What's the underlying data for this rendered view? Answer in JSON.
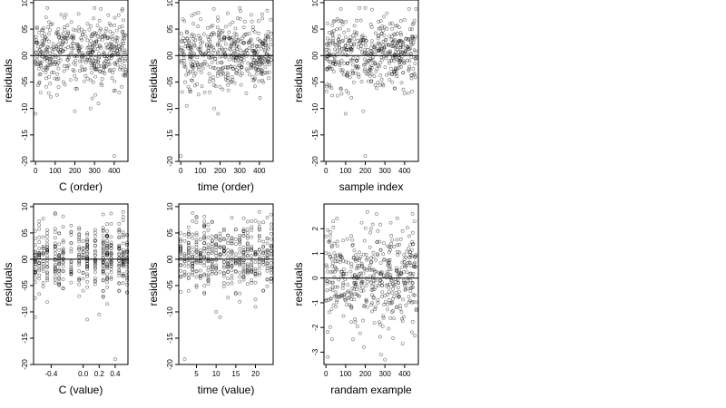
{
  "chart_data": [
    {
      "type": "scatter",
      "xlabel": "C (order)",
      "ylabel": "residuals",
      "xlim": [
        -10,
        470
      ],
      "ylim": [
        -2.0,
        1.05
      ],
      "xticks": [
        0,
        100,
        200,
        300,
        400
      ],
      "xtick_labels": [
        "0",
        "100",
        "200",
        "300",
        "400"
      ],
      "yticks": [
        -2.0,
        -1.5,
        -1.0,
        -0.5,
        0.0,
        0.5,
        1.0
      ],
      "ytick_labels": [
        "-20",
        "-15",
        "-10",
        "-05",
        "00",
        "05",
        "10"
      ],
      "reference_line_y": 0,
      "n_points": 460,
      "x_range": [
        0,
        460
      ],
      "y_range": [
        -1.9,
        0.9
      ],
      "notes_points": [
        [
          0,
          -1.1
        ],
        [
          200,
          -1.05
        ],
        [
          280,
          -1.0
        ],
        [
          400,
          -1.9
        ],
        [
          60,
          0.9
        ],
        [
          300,
          0.9
        ],
        [
          440,
          0.85
        ]
      ]
    },
    {
      "type": "scatter",
      "xlabel": "time (order)",
      "ylabel": "residuals",
      "xlim": [
        -10,
        470
      ],
      "ylim": [
        -2.0,
        1.05
      ],
      "xticks": [
        0,
        100,
        200,
        300,
        400
      ],
      "xtick_labels": [
        "0",
        "100",
        "200",
        "300",
        "400"
      ],
      "yticks": [
        -2.0,
        -1.5,
        -1.0,
        -0.5,
        0.0,
        0.5,
        1.0
      ],
      "ytick_labels": [
        "-20",
        "-15",
        "-10",
        "-05",
        "00",
        "05",
        "10"
      ],
      "reference_line_y": 0,
      "n_points": 460,
      "x_range": [
        0,
        460
      ],
      "y_range": [
        -1.9,
        0.9
      ],
      "notes_points": [
        [
          0,
          -1.9
        ],
        [
          30,
          -0.95
        ],
        [
          170,
          -1.0
        ],
        [
          190,
          -1.1
        ],
        [
          300,
          0.9
        ],
        [
          440,
          0.85
        ]
      ]
    },
    {
      "type": "scatter",
      "xlabel": "sample index",
      "ylabel": "residuals",
      "xlim": [
        -10,
        470
      ],
      "ylim": [
        -2.0,
        1.05
      ],
      "xticks": [
        0,
        100,
        200,
        300,
        400
      ],
      "xtick_labels": [
        "0",
        "100",
        "200",
        "300",
        "400"
      ],
      "yticks": [
        -2.0,
        -1.5,
        -1.0,
        -0.5,
        0.0,
        0.5,
        1.0
      ],
      "ytick_labels": [
        "-20",
        "-15",
        "-10",
        "-05",
        "00",
        "05",
        "10"
      ],
      "reference_line_y": 0,
      "n_points": 460,
      "x_range": [
        0,
        460
      ],
      "y_range": [
        -1.9,
        0.9
      ],
      "notes_points": [
        [
          200,
          -1.9
        ],
        [
          100,
          -1.1
        ],
        [
          190,
          -1.05
        ],
        [
          170,
          0.9
        ],
        [
          200,
          0.9
        ],
        [
          310,
          0.8
        ]
      ]
    },
    {
      "type": "scatter",
      "xlabel": "C (value)",
      "ylabel": "residuals",
      "xlim": [
        -0.62,
        0.56
      ],
      "ylim": [
        -2.0,
        1.05
      ],
      "xticks": [
        -0.4,
        0.0,
        0.2,
        0.4
      ],
      "xtick_labels": [
        "-0.4",
        "0.0",
        "0.2",
        "0.4"
      ],
      "yticks": [
        -2.0,
        -1.5,
        -1.0,
        -0.5,
        0.0,
        0.5,
        1.0
      ],
      "ytick_labels": [
        "-20",
        "-15",
        "-10",
        "-05",
        "00",
        "05",
        "10"
      ],
      "reference_line_y": 0,
      "n_points": 460,
      "x_columns": [
        -0.6,
        -0.55,
        -0.5,
        -0.45,
        -0.35,
        -0.3,
        -0.25,
        -0.15,
        -0.05,
        0.0,
        0.05,
        0.15,
        0.25,
        0.3,
        0.35,
        0.45,
        0.5,
        0.55
      ],
      "y_range": [
        -1.9,
        0.9
      ],
      "notes_points": [
        [
          -0.6,
          -1.1
        ],
        [
          0.2,
          -1.05
        ],
        [
          0.4,
          -1.9
        ],
        [
          0.5,
          0.9
        ]
      ]
    },
    {
      "type": "scatter",
      "xlabel": "time (value)",
      "ylabel": "residuals",
      "xlim": [
        0.5,
        24.5
      ],
      "ylim": [
        -2.0,
        1.05
      ],
      "xticks": [
        5,
        10,
        15,
        20
      ],
      "xtick_labels": [
        "5",
        "10",
        "15",
        "20"
      ],
      "yticks": [
        -2.0,
        -1.5,
        -1.0,
        -0.5,
        0.0,
        0.5,
        1.0
      ],
      "ytick_labels": [
        "-20",
        "-15",
        "-10",
        "-05",
        "00",
        "05",
        "10"
      ],
      "reference_line_y": 0,
      "n_points": 460,
      "x_columns": [
        1,
        2,
        3,
        4,
        5,
        6,
        7,
        8,
        9,
        10,
        11,
        12,
        13,
        14,
        15,
        16,
        17,
        18,
        19,
        20,
        21,
        22,
        23,
        24
      ],
      "y_range": [
        -1.9,
        0.9
      ],
      "notes_points": [
        [
          2,
          -1.9
        ],
        [
          10,
          -1.0
        ],
        [
          11,
          -1.1
        ],
        [
          21,
          0.9
        ],
        [
          24,
          0.85
        ]
      ]
    },
    {
      "type": "scatter",
      "xlabel": "randam example",
      "ylabel": "residuals",
      "xlim": [
        -10,
        470
      ],
      "ylim": [
        -3.5,
        3.0
      ],
      "xticks": [
        0,
        100,
        200,
        300,
        400
      ],
      "xtick_labels": [
        "0",
        "100",
        "200",
        "300",
        "400"
      ],
      "yticks": [
        -3,
        -2,
        -1,
        0,
        1,
        2
      ],
      "ytick_labels": [
        "-3",
        "-2",
        "-1",
        "0",
        "1",
        "2"
      ],
      "reference_line_y": 0,
      "n_points": 460,
      "x_range": [
        0,
        460
      ],
      "y_range": [
        -3.3,
        2.7
      ],
      "notes_points": [
        [
          10,
          -3.2
        ],
        [
          280,
          -3.1
        ],
        [
          300,
          -3.3
        ],
        [
          440,
          2.6
        ],
        [
          450,
          2.3
        ]
      ]
    }
  ]
}
